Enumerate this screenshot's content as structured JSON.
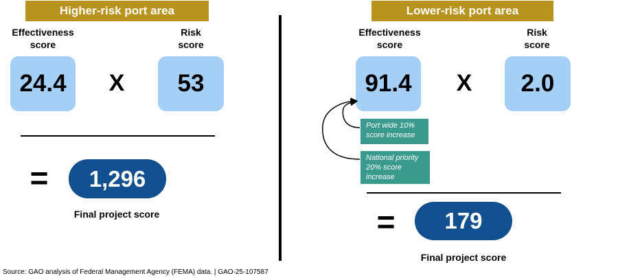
{
  "left": {
    "banner": "Higher-risk port area",
    "effectiveness_label_line1": "Effectiveness",
    "effectiveness_label_line2": "score",
    "risk_label_line1": "Risk",
    "risk_label_line2": "score",
    "effectiveness_value": "24.4",
    "operator": "X",
    "risk_value": "53",
    "equals": "=",
    "final_value": "1,296",
    "final_label": "Final project score"
  },
  "right": {
    "banner": "Lower-risk port area",
    "effectiveness_label_line1": "Effectiveness",
    "effectiveness_label_line2": "score",
    "risk_label_line1": "Risk",
    "risk_label_line2": "score",
    "effectiveness_value": "91.4",
    "operator": "X",
    "risk_value": "2.0",
    "equals": "=",
    "final_value": "179",
    "final_label": "Final project score",
    "increase_1_line1": "Port wide 10%",
    "increase_1_line2": "score increase",
    "increase_2_line1": "National priority",
    "increase_2_line2": "20% score",
    "increase_2_line3": "increase"
  },
  "source": "Source: GAO analysis of Federal Management Agency (FEMA) data.  |  GAO-25-107587",
  "colors": {
    "banner": "#b8941f",
    "score_box": "#a6cff5",
    "final_pill": "#114f8f",
    "increase_box": "#3b9a8e"
  }
}
